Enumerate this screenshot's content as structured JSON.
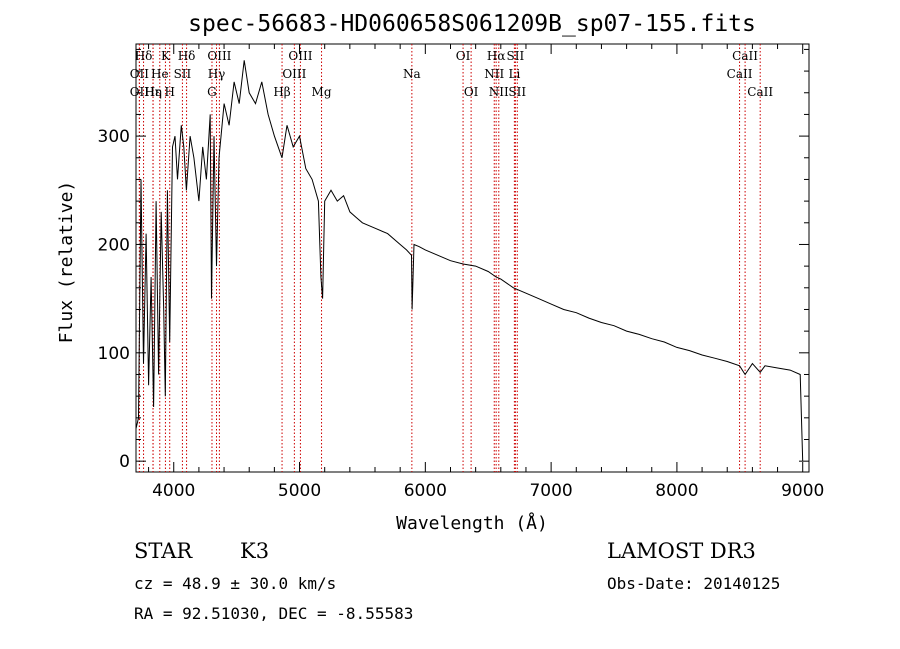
{
  "chart_data": {
    "type": "line",
    "title": "spec-56683-HD060658S061209B_sp07-155.fits",
    "xlabel": "Wavelength (Å)",
    "ylabel": "Flux (relative)",
    "xlim": [
      3700,
      9050
    ],
    "ylim": [
      -10,
      385
    ],
    "xticks": [
      4000,
      5000,
      6000,
      7000,
      8000,
      9000
    ],
    "yticks": [
      0,
      100,
      200,
      300
    ],
    "grid": false,
    "series": [
      {
        "name": "flux",
        "x": [
          3700,
          3720,
          3740,
          3760,
          3780,
          3800,
          3820,
          3840,
          3860,
          3880,
          3900,
          3920,
          3933,
          3950,
          3968,
          3990,
          4010,
          4030,
          4060,
          4080,
          4101,
          4130,
          4160,
          4200,
          4230,
          4260,
          4290,
          4300,
          4320,
          4340,
          4360,
          4400,
          4440,
          4480,
          4520,
          4560,
          4600,
          4650,
          4700,
          4750,
          4800,
          4861,
          4900,
          4950,
          5000,
          5050,
          5100,
          5150,
          5170,
          5183,
          5200,
          5250,
          5300,
          5350,
          5400,
          5450,
          5500,
          5600,
          5700,
          5800,
          5850,
          5890,
          5895,
          5910,
          5950,
          6000,
          6100,
          6200,
          6300,
          6400,
          6500,
          6563,
          6600,
          6700,
          6800,
          6900,
          7000,
          7100,
          7200,
          7300,
          7400,
          7500,
          7600,
          7700,
          7800,
          7900,
          8000,
          8100,
          8200,
          8300,
          8400,
          8498,
          8542,
          8600,
          8662,
          8700,
          8800,
          8900,
          8980,
          9000
        ],
        "y": [
          30,
          40,
          260,
          90,
          210,
          70,
          170,
          50,
          240,
          80,
          230,
          140,
          60,
          250,
          110,
          290,
          300,
          260,
          310,
          290,
          250,
          300,
          280,
          240,
          290,
          260,
          320,
          150,
          300,
          180,
          280,
          330,
          310,
          350,
          330,
          370,
          340,
          330,
          350,
          320,
          300,
          280,
          310,
          290,
          300,
          270,
          260,
          240,
          170,
          150,
          240,
          250,
          240,
          245,
          230,
          225,
          220,
          215,
          210,
          200,
          195,
          190,
          140,
          200,
          198,
          195,
          190,
          185,
          182,
          180,
          175,
          170,
          168,
          160,
          155,
          150,
          145,
          140,
          137,
          132,
          128,
          125,
          120,
          117,
          113,
          110,
          105,
          102,
          98,
          95,
          92,
          88,
          80,
          90,
          82,
          88,
          86,
          84,
          80,
          0
        ]
      }
    ],
    "emission_lines": [
      {
        "label": "Hδ",
        "x": 3760,
        "row": 0
      },
      {
        "label": "K",
        "x": 3934,
        "row": 0
      },
      {
        "label": "Hδ",
        "x": 4102,
        "row": 0
      },
      {
        "label": "OIII",
        "x": 4363,
        "row": 0
      },
      {
        "label": "OIII",
        "x": 5007,
        "row": 0
      },
      {
        "label": "OI",
        "x": 6300,
        "row": 0
      },
      {
        "label": "Hα",
        "x": 6563,
        "row": 0
      },
      {
        "label": "SII",
        "x": 6716,
        "row": 0
      },
      {
        "label": "CaII",
        "x": 8542,
        "row": 0
      },
      {
        "label": "OII",
        "x": 3727,
        "row": 1
      },
      {
        "label": "He",
        "x": 3889,
        "row": 1
      },
      {
        "label": "SII",
        "x": 4069,
        "row": 1
      },
      {
        "label": "Hγ",
        "x": 4340,
        "row": 1
      },
      {
        "label": "OIII",
        "x": 4959,
        "row": 1
      },
      {
        "label": "Na",
        "x": 5893,
        "row": 1
      },
      {
        "label": "NII",
        "x": 6548,
        "row": 1
      },
      {
        "label": "Li",
        "x": 6708,
        "row": 1
      },
      {
        "label": "CaII",
        "x": 8498,
        "row": 1
      },
      {
        "label": "OII",
        "x": 3727,
        "row": 2
      },
      {
        "label": "Hε",
        "x": 3835,
        "row": 2
      },
      {
        "label": "Hη",
        "x": 3836,
        "row": 2
      },
      {
        "label": "H",
        "x": 3968,
        "row": 2
      },
      {
        "label": "G",
        "x": 4304,
        "row": 2
      },
      {
        "label": "Hβ",
        "x": 4861,
        "row": 2
      },
      {
        "label": "Mg",
        "x": 5175,
        "row": 2
      },
      {
        "label": "OI",
        "x": 6364,
        "row": 2
      },
      {
        "label": "NII",
        "x": 6584,
        "row": 2
      },
      {
        "label": "SII",
        "x": 6731,
        "row": 2
      },
      {
        "label": "CaII",
        "x": 8662,
        "row": 2
      }
    ]
  },
  "info": {
    "object_class": "STAR",
    "subclass": "K3",
    "survey": "LAMOST DR3",
    "redshift": "cz = 48.9 ± 30.0 km/s",
    "obs_date": "Obs-Date: 20140125",
    "coords": "RA =  92.51030, DEC =  -8.55583"
  }
}
